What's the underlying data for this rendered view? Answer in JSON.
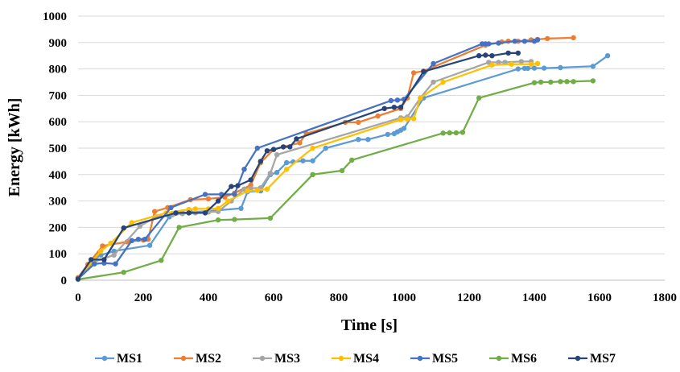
{
  "chart_data": {
    "type": "line",
    "xlabel": "Time [s]",
    "ylabel": "Energy [kWh]",
    "xlim": [
      0,
      1800
    ],
    "ylim": [
      0,
      1000
    ],
    "x_ticks": [
      0,
      200,
      400,
      600,
      800,
      1000,
      1200,
      1400,
      1600,
      1800
    ],
    "y_ticks": [
      0,
      100,
      200,
      300,
      400,
      500,
      600,
      700,
      800,
      900,
      1000
    ],
    "grid": "horizontal",
    "legend_position": "bottom",
    "series": [
      {
        "name": "MS1",
        "color": "#5B9BD5",
        "points": [
          [
            0,
            5
          ],
          [
            45,
            75
          ],
          [
            70,
            95
          ],
          [
            110,
            110
          ],
          [
            220,
            132
          ],
          [
            280,
            240
          ],
          [
            320,
            255
          ],
          [
            345,
            258
          ],
          [
            400,
            262
          ],
          [
            500,
            272
          ],
          [
            520,
            335
          ],
          [
            560,
            338
          ],
          [
            590,
            400
          ],
          [
            610,
            408
          ],
          [
            640,
            445
          ],
          [
            660,
            448
          ],
          [
            690,
            452
          ],
          [
            720,
            452
          ],
          [
            760,
            500
          ],
          [
            860,
            533
          ],
          [
            890,
            533
          ],
          [
            950,
            552
          ],
          [
            970,
            555
          ],
          [
            980,
            562
          ],
          [
            990,
            568
          ],
          [
            1000,
            575
          ],
          [
            1060,
            690
          ],
          [
            1350,
            800
          ],
          [
            1370,
            802
          ],
          [
            1380,
            802
          ],
          [
            1400,
            803
          ],
          [
            1430,
            803
          ],
          [
            1480,
            805
          ],
          [
            1580,
            810
          ],
          [
            1625,
            850
          ]
        ]
      },
      {
        "name": "MS2",
        "color": "#ED7D31",
        "points": [
          [
            0,
            10
          ],
          [
            30,
            60
          ],
          [
            75,
            130
          ],
          [
            150,
            145
          ],
          [
            200,
            152
          ],
          [
            215,
            155
          ],
          [
            235,
            260
          ],
          [
            275,
            275
          ],
          [
            345,
            305
          ],
          [
            400,
            308
          ],
          [
            450,
            315
          ],
          [
            480,
            330
          ],
          [
            530,
            360
          ],
          [
            560,
            445
          ],
          [
            600,
            495
          ],
          [
            630,
            505
          ],
          [
            680,
            520
          ],
          [
            700,
            555
          ],
          [
            820,
            598
          ],
          [
            860,
            598
          ],
          [
            920,
            622
          ],
          [
            990,
            650
          ],
          [
            1010,
            690
          ],
          [
            1030,
            785
          ],
          [
            1060,
            792
          ],
          [
            1250,
            890
          ],
          [
            1300,
            902
          ],
          [
            1320,
            905
          ],
          [
            1350,
            905
          ],
          [
            1390,
            910
          ],
          [
            1410,
            912
          ],
          [
            1440,
            915
          ],
          [
            1520,
            918
          ]
        ]
      },
      {
        "name": "MS3",
        "color": "#A5A5A5",
        "points": [
          [
            0,
            5
          ],
          [
            50,
            70
          ],
          [
            110,
            95
          ],
          [
            190,
            205
          ],
          [
            240,
            240
          ],
          [
            290,
            248
          ],
          [
            320,
            252
          ],
          [
            360,
            255
          ],
          [
            400,
            258
          ],
          [
            430,
            260
          ],
          [
            470,
            300
          ],
          [
            510,
            345
          ],
          [
            530,
            348
          ],
          [
            560,
            350
          ],
          [
            590,
            405
          ],
          [
            610,
            475
          ],
          [
            990,
            615
          ],
          [
            1010,
            618
          ],
          [
            1050,
            690
          ],
          [
            1090,
            750
          ],
          [
            1260,
            825
          ],
          [
            1290,
            825
          ],
          [
            1310,
            825
          ],
          [
            1360,
            828
          ],
          [
            1390,
            828
          ]
        ]
      },
      {
        "name": "MS4",
        "color": "#FFC000",
        "points": [
          [
            0,
            5
          ],
          [
            70,
            110
          ],
          [
            100,
            140
          ],
          [
            165,
            218
          ],
          [
            270,
            255
          ],
          [
            340,
            268
          ],
          [
            360,
            270
          ],
          [
            400,
            270
          ],
          [
            430,
            272
          ],
          [
            460,
            300
          ],
          [
            520,
            338
          ],
          [
            550,
            340
          ],
          [
            580,
            345
          ],
          [
            640,
            420
          ],
          [
            720,
            500
          ],
          [
            990,
            608
          ],
          [
            1010,
            610
          ],
          [
            1030,
            612
          ],
          [
            1050,
            690
          ],
          [
            1120,
            750
          ],
          [
            1270,
            815
          ],
          [
            1330,
            818
          ],
          [
            1390,
            818
          ],
          [
            1410,
            820
          ]
        ]
      },
      {
        "name": "MS5",
        "color": "#4472C4",
        "points": [
          [
            0,
            5
          ],
          [
            50,
            62
          ],
          [
            80,
            65
          ],
          [
            115,
            62
          ],
          [
            165,
            150
          ],
          [
            185,
            155
          ],
          [
            205,
            155
          ],
          [
            285,
            275
          ],
          [
            390,
            325
          ],
          [
            440,
            325
          ],
          [
            480,
            325
          ],
          [
            510,
            420
          ],
          [
            550,
            500
          ],
          [
            960,
            680
          ],
          [
            980,
            682
          ],
          [
            1000,
            685
          ],
          [
            1090,
            820
          ],
          [
            1240,
            895
          ],
          [
            1250,
            895
          ],
          [
            1260,
            895
          ],
          [
            1290,
            898
          ],
          [
            1340,
            905
          ],
          [
            1370,
            905
          ],
          [
            1400,
            905
          ],
          [
            1410,
            910
          ]
        ]
      },
      {
        "name": "MS6",
        "color": "#70AD47",
        "points": [
          [
            0,
            3
          ],
          [
            140,
            30
          ],
          [
            255,
            75
          ],
          [
            310,
            200
          ],
          [
            430,
            228
          ],
          [
            480,
            230
          ],
          [
            590,
            235
          ],
          [
            720,
            400
          ],
          [
            810,
            415
          ],
          [
            840,
            455
          ],
          [
            1120,
            557
          ],
          [
            1140,
            558
          ],
          [
            1160,
            558
          ],
          [
            1180,
            560
          ],
          [
            1230,
            690
          ],
          [
            1400,
            748
          ],
          [
            1420,
            750
          ],
          [
            1450,
            750
          ],
          [
            1480,
            752
          ],
          [
            1500,
            752
          ],
          [
            1520,
            752
          ],
          [
            1580,
            755
          ]
        ]
      },
      {
        "name": "MS7",
        "color": "#264478",
        "points": [
          [
            0,
            5
          ],
          [
            40,
            78
          ],
          [
            80,
            78
          ],
          [
            140,
            198
          ],
          [
            300,
            255
          ],
          [
            340,
            255
          ],
          [
            390,
            255
          ],
          [
            430,
            300
          ],
          [
            470,
            355
          ],
          [
            490,
            358
          ],
          [
            530,
            380
          ],
          [
            560,
            450
          ],
          [
            580,
            490
          ],
          [
            600,
            495
          ],
          [
            630,
            505
          ],
          [
            650,
            505
          ],
          [
            670,
            535
          ],
          [
            940,
            650
          ],
          [
            970,
            655
          ],
          [
            990,
            655
          ],
          [
            1060,
            790
          ],
          [
            1230,
            850
          ],
          [
            1250,
            852
          ],
          [
            1270,
            850
          ],
          [
            1320,
            860
          ],
          [
            1350,
            860
          ]
        ]
      }
    ]
  }
}
